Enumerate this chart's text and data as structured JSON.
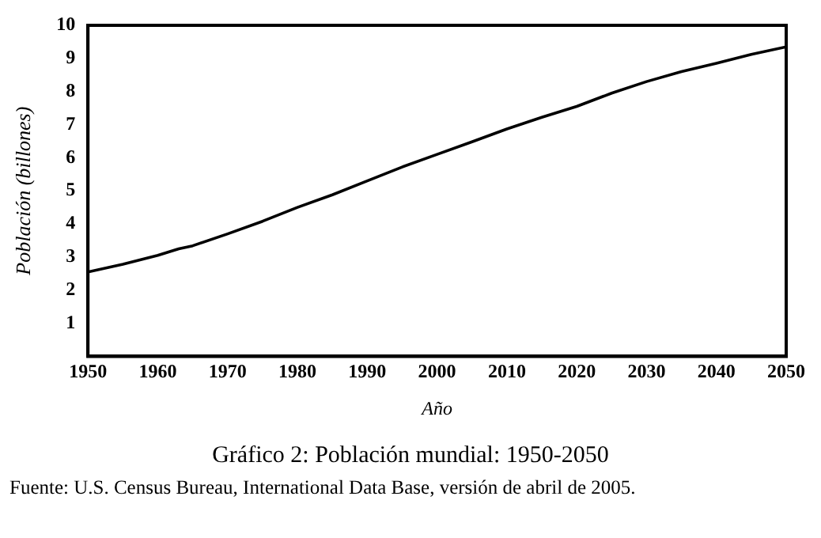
{
  "chart_data": {
    "type": "line",
    "title": "Gráfico 2:    Población mundial: 1950-2050",
    "xlabel": "Año",
    "ylabel": "Población (billones)",
    "annotations": [
      "Fuente: U.S. Census Bureau, International Data Base, versión de abril de 2005."
    ],
    "x": [
      1950,
      1955,
      1960,
      1963,
      1965,
      1970,
      1975,
      1980,
      1985,
      1990,
      1995,
      2000,
      2005,
      2010,
      2015,
      2020,
      2025,
      2030,
      2035,
      2040,
      2045,
      2050
    ],
    "series": [
      {
        "color": "#000000",
        "values": [
          2.55,
          2.78,
          3.05,
          3.25,
          3.34,
          3.7,
          4.08,
          4.5,
          4.88,
          5.3,
          5.72,
          6.1,
          6.48,
          6.87,
          7.22,
          7.55,
          7.95,
          8.3,
          8.6,
          8.85,
          9.12,
          9.35
        ]
      }
    ],
    "xlim": [
      1950,
      2050
    ],
    "xticks": [
      1950,
      1960,
      1970,
      1980,
      1990,
      2000,
      2010,
      2020,
      2030,
      2040,
      2050
    ],
    "ylim": [
      0,
      10
    ],
    "yticks": [
      1,
      2,
      3,
      4,
      5,
      6,
      7,
      8,
      9,
      10
    ],
    "grid": false,
    "legend": false,
    "marker": "none",
    "line_style": "solid"
  }
}
